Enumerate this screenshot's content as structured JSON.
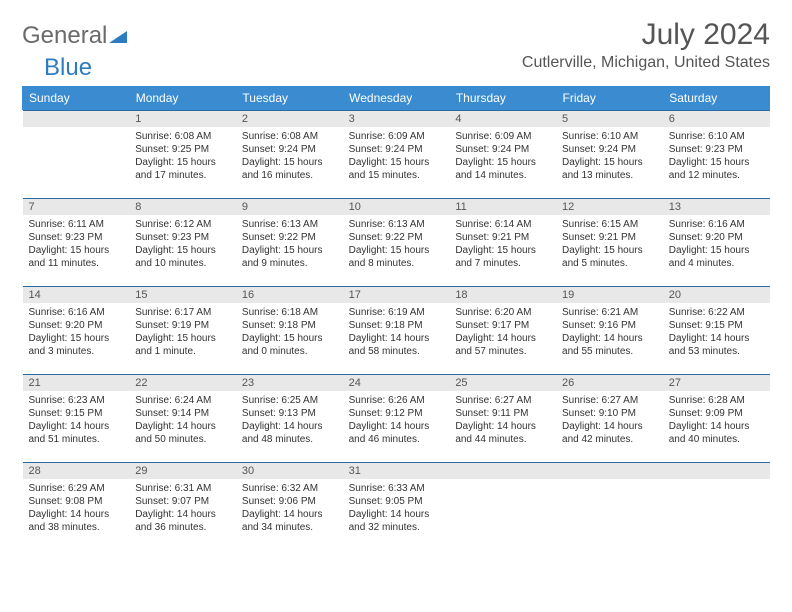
{
  "brand": {
    "part1": "General",
    "part2": "Blue"
  },
  "title": "July 2024",
  "location": "Cutlerville, Michigan, United States",
  "colors": {
    "header_bg": "#3a8bd0",
    "header_text": "#ffffff",
    "border": "#2c6aa3",
    "daynum_bg": "#e8e8e8",
    "text": "#333333",
    "brand_gray": "#6a6a6a",
    "brand_blue": "#2e7cc0"
  },
  "weekdays": [
    "Sunday",
    "Monday",
    "Tuesday",
    "Wednesday",
    "Thursday",
    "Friday",
    "Saturday"
  ],
  "weeks": [
    [
      {
        "n": "",
        "sr": "",
        "ss": "",
        "dl": ""
      },
      {
        "n": "1",
        "sr": "Sunrise: 6:08 AM",
        "ss": "Sunset: 9:25 PM",
        "dl": "Daylight: 15 hours and 17 minutes."
      },
      {
        "n": "2",
        "sr": "Sunrise: 6:08 AM",
        "ss": "Sunset: 9:24 PM",
        "dl": "Daylight: 15 hours and 16 minutes."
      },
      {
        "n": "3",
        "sr": "Sunrise: 6:09 AM",
        "ss": "Sunset: 9:24 PM",
        "dl": "Daylight: 15 hours and 15 minutes."
      },
      {
        "n": "4",
        "sr": "Sunrise: 6:09 AM",
        "ss": "Sunset: 9:24 PM",
        "dl": "Daylight: 15 hours and 14 minutes."
      },
      {
        "n": "5",
        "sr": "Sunrise: 6:10 AM",
        "ss": "Sunset: 9:24 PM",
        "dl": "Daylight: 15 hours and 13 minutes."
      },
      {
        "n": "6",
        "sr": "Sunrise: 6:10 AM",
        "ss": "Sunset: 9:23 PM",
        "dl": "Daylight: 15 hours and 12 minutes."
      }
    ],
    [
      {
        "n": "7",
        "sr": "Sunrise: 6:11 AM",
        "ss": "Sunset: 9:23 PM",
        "dl": "Daylight: 15 hours and 11 minutes."
      },
      {
        "n": "8",
        "sr": "Sunrise: 6:12 AM",
        "ss": "Sunset: 9:23 PM",
        "dl": "Daylight: 15 hours and 10 minutes."
      },
      {
        "n": "9",
        "sr": "Sunrise: 6:13 AM",
        "ss": "Sunset: 9:22 PM",
        "dl": "Daylight: 15 hours and 9 minutes."
      },
      {
        "n": "10",
        "sr": "Sunrise: 6:13 AM",
        "ss": "Sunset: 9:22 PM",
        "dl": "Daylight: 15 hours and 8 minutes."
      },
      {
        "n": "11",
        "sr": "Sunrise: 6:14 AM",
        "ss": "Sunset: 9:21 PM",
        "dl": "Daylight: 15 hours and 7 minutes."
      },
      {
        "n": "12",
        "sr": "Sunrise: 6:15 AM",
        "ss": "Sunset: 9:21 PM",
        "dl": "Daylight: 15 hours and 5 minutes."
      },
      {
        "n": "13",
        "sr": "Sunrise: 6:16 AM",
        "ss": "Sunset: 9:20 PM",
        "dl": "Daylight: 15 hours and 4 minutes."
      }
    ],
    [
      {
        "n": "14",
        "sr": "Sunrise: 6:16 AM",
        "ss": "Sunset: 9:20 PM",
        "dl": "Daylight: 15 hours and 3 minutes."
      },
      {
        "n": "15",
        "sr": "Sunrise: 6:17 AM",
        "ss": "Sunset: 9:19 PM",
        "dl": "Daylight: 15 hours and 1 minute."
      },
      {
        "n": "16",
        "sr": "Sunrise: 6:18 AM",
        "ss": "Sunset: 9:18 PM",
        "dl": "Daylight: 15 hours and 0 minutes."
      },
      {
        "n": "17",
        "sr": "Sunrise: 6:19 AM",
        "ss": "Sunset: 9:18 PM",
        "dl": "Daylight: 14 hours and 58 minutes."
      },
      {
        "n": "18",
        "sr": "Sunrise: 6:20 AM",
        "ss": "Sunset: 9:17 PM",
        "dl": "Daylight: 14 hours and 57 minutes."
      },
      {
        "n": "19",
        "sr": "Sunrise: 6:21 AM",
        "ss": "Sunset: 9:16 PM",
        "dl": "Daylight: 14 hours and 55 minutes."
      },
      {
        "n": "20",
        "sr": "Sunrise: 6:22 AM",
        "ss": "Sunset: 9:15 PM",
        "dl": "Daylight: 14 hours and 53 minutes."
      }
    ],
    [
      {
        "n": "21",
        "sr": "Sunrise: 6:23 AM",
        "ss": "Sunset: 9:15 PM",
        "dl": "Daylight: 14 hours and 51 minutes."
      },
      {
        "n": "22",
        "sr": "Sunrise: 6:24 AM",
        "ss": "Sunset: 9:14 PM",
        "dl": "Daylight: 14 hours and 50 minutes."
      },
      {
        "n": "23",
        "sr": "Sunrise: 6:25 AM",
        "ss": "Sunset: 9:13 PM",
        "dl": "Daylight: 14 hours and 48 minutes."
      },
      {
        "n": "24",
        "sr": "Sunrise: 6:26 AM",
        "ss": "Sunset: 9:12 PM",
        "dl": "Daylight: 14 hours and 46 minutes."
      },
      {
        "n": "25",
        "sr": "Sunrise: 6:27 AM",
        "ss": "Sunset: 9:11 PM",
        "dl": "Daylight: 14 hours and 44 minutes."
      },
      {
        "n": "26",
        "sr": "Sunrise: 6:27 AM",
        "ss": "Sunset: 9:10 PM",
        "dl": "Daylight: 14 hours and 42 minutes."
      },
      {
        "n": "27",
        "sr": "Sunrise: 6:28 AM",
        "ss": "Sunset: 9:09 PM",
        "dl": "Daylight: 14 hours and 40 minutes."
      }
    ],
    [
      {
        "n": "28",
        "sr": "Sunrise: 6:29 AM",
        "ss": "Sunset: 9:08 PM",
        "dl": "Daylight: 14 hours and 38 minutes."
      },
      {
        "n": "29",
        "sr": "Sunrise: 6:31 AM",
        "ss": "Sunset: 9:07 PM",
        "dl": "Daylight: 14 hours and 36 minutes."
      },
      {
        "n": "30",
        "sr": "Sunrise: 6:32 AM",
        "ss": "Sunset: 9:06 PM",
        "dl": "Daylight: 14 hours and 34 minutes."
      },
      {
        "n": "31",
        "sr": "Sunrise: 6:33 AM",
        "ss": "Sunset: 9:05 PM",
        "dl": "Daylight: 14 hours and 32 minutes."
      },
      {
        "n": "",
        "sr": "",
        "ss": "",
        "dl": ""
      },
      {
        "n": "",
        "sr": "",
        "ss": "",
        "dl": ""
      },
      {
        "n": "",
        "sr": "",
        "ss": "",
        "dl": ""
      }
    ]
  ]
}
